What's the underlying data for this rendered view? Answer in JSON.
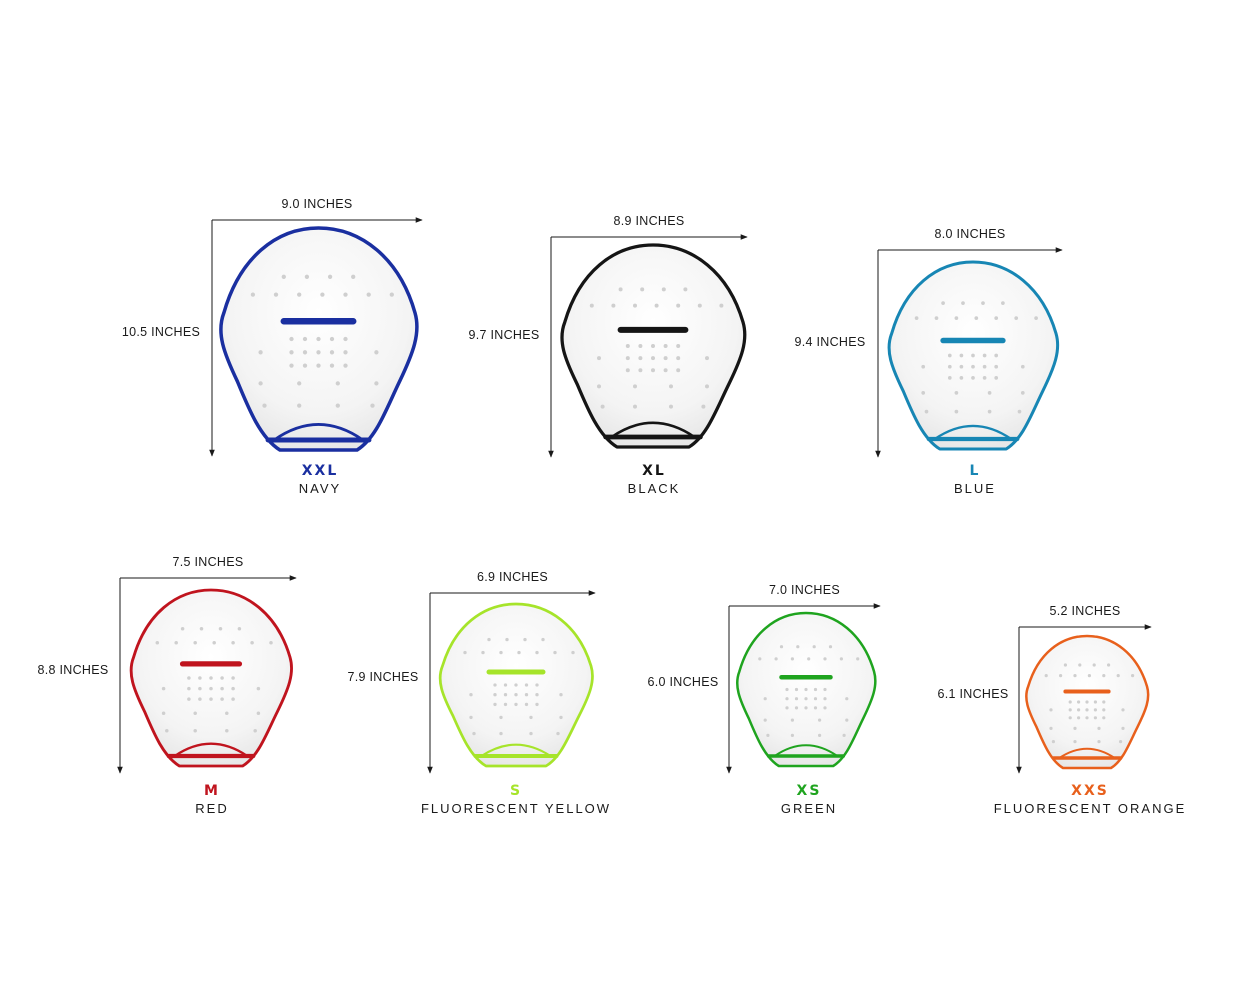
{
  "paddles": [
    {
      "size": "XXL",
      "color_name": "NAVY",
      "width_label": "9.0 INCHES",
      "height_label": "10.5 INCHES",
      "color": "#1a2fa0"
    },
    {
      "size": "XL",
      "color_name": "BLACK",
      "width_label": "8.9 INCHES",
      "height_label": "9.7 INCHES",
      "color": "#151515"
    },
    {
      "size": "L",
      "color_name": "BLUE",
      "width_label": "8.0 INCHES",
      "height_label": "9.4 INCHES",
      "color": "#1786b4"
    },
    {
      "size": "M",
      "color_name": "RED",
      "width_label": "7.5 INCHES",
      "height_label": "8.8 INCHES",
      "color": "#c0141e"
    },
    {
      "size": "S",
      "color_name": "FLUORESCENT YELLOW",
      "width_label": "6.9 INCHES",
      "height_label": "7.9 INCHES",
      "color": "#a6e42a"
    },
    {
      "size": "XS",
      "color_name": "GREEN",
      "width_label": "7.0 INCHES",
      "height_label": "6.0 INCHES",
      "color": "#1fa41f"
    },
    {
      "size": "XXS",
      "color_name": "FLUORESCENT ORANGE",
      "width_label": "5.2 INCHES",
      "height_label": "6.1 INCHES",
      "color": "#e8601c"
    }
  ]
}
